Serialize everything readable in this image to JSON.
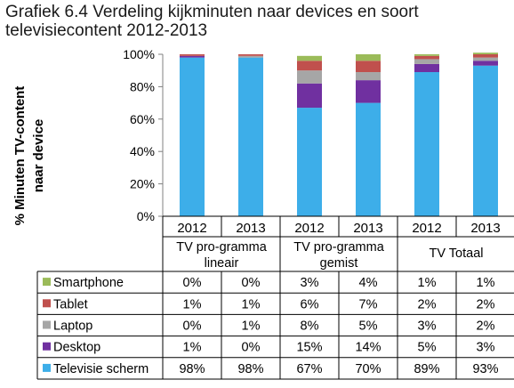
{
  "title_lines": [
    "Grafiek 6.4 Verdeling kijkminuten naar devices en soort",
    "televisiecontent 2012-2013"
  ],
  "ylabel_lines": [
    "% Minuten TV-content",
    "naar device"
  ],
  "chart_data": {
    "type": "bar",
    "stacked": true,
    "title": "Grafiek 6.4 Verdeling kijkminuten naar devices en soort televisiecontent 2012-2013",
    "ylabel": "% Minuten TV-content naar device",
    "ylim": [
      0,
      100
    ],
    "yticks": [
      "0%",
      "20%",
      "40%",
      "60%",
      "80%",
      "100%"
    ],
    "categories": [
      "2012",
      "2013",
      "2012",
      "2013",
      "2012",
      "2013"
    ],
    "groups": [
      {
        "lines": [
          "TV pro-gramma",
          "lineair"
        ]
      },
      {
        "lines": [
          "TV pro-gramma",
          "gemist"
        ]
      },
      {
        "lines": [
          "TV Totaal"
        ]
      }
    ],
    "series": [
      {
        "name": "Televisie scherm",
        "color": "#3daee9",
        "values": [
          98,
          98,
          67,
          70,
          89,
          93
        ],
        "labels": [
          "98%",
          "98%",
          "67%",
          "70%",
          "89%",
          "93%"
        ]
      },
      {
        "name": "Desktop",
        "color": "#7030a0",
        "values": [
          1,
          0,
          15,
          14,
          5,
          3
        ],
        "labels": [
          "1%",
          "0%",
          "15%",
          "14%",
          "5%",
          "3%"
        ]
      },
      {
        "name": "Laptop",
        "color": "#a6a6a6",
        "values": [
          0,
          1,
          8,
          5,
          3,
          2
        ],
        "labels": [
          "0%",
          "1%",
          "8%",
          "5%",
          "3%",
          "2%"
        ]
      },
      {
        "name": "Tablet",
        "color": "#c0504d",
        "values": [
          1,
          1,
          6,
          7,
          2,
          2
        ],
        "labels": [
          "1%",
          "1%",
          "6%",
          "7%",
          "2%",
          "2%"
        ]
      },
      {
        "name": "Smartphone",
        "color": "#9bbb59",
        "values": [
          0,
          0,
          3,
          4,
          1,
          1
        ],
        "labels": [
          "0%",
          "0%",
          "3%",
          "4%",
          "1%",
          "1%"
        ]
      }
    ],
    "grid": false,
    "legend": "data-table"
  }
}
